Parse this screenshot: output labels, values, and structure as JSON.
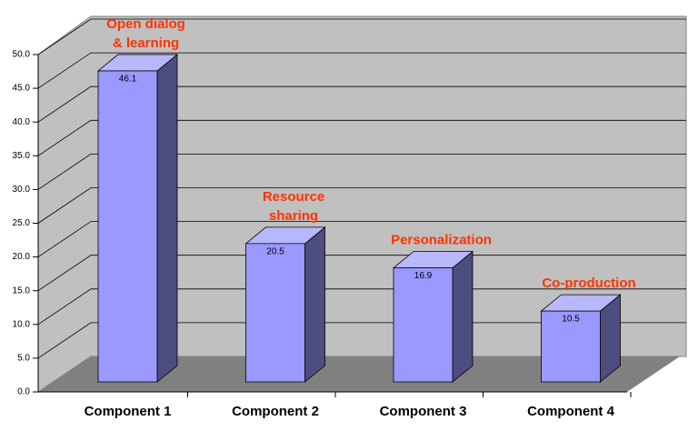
{
  "chart_data": {
    "type": "bar3d",
    "categories": [
      "Component 1",
      "Component 2",
      "Component 3",
      "Component 4"
    ],
    "values": [
      46.1,
      20.5,
      16.9,
      10.5
    ],
    "annotations": [
      [
        "Open dialog",
        "& learning"
      ],
      [
        "Resource",
        "sharing"
      ],
      [
        "Personalization"
      ],
      [
        "Co-production"
      ]
    ],
    "color": "#9999ff",
    "annotation_color": "#ff3300",
    "ylim": [
      0,
      50
    ],
    "yticks": [
      {
        "value": 0,
        "label": "0.0"
      },
      {
        "value": 5,
        "label": "5.0"
      },
      {
        "value": 10,
        "label": "10.0"
      },
      {
        "value": 15,
        "label": "15.0"
      },
      {
        "value": 20,
        "label": "20.0"
      },
      {
        "value": 25,
        "label": "25.0"
      },
      {
        "value": 30,
        "label": "30.0"
      },
      {
        "value": 35,
        "label": "35.0"
      },
      {
        "value": 40,
        "label": "40.0"
      },
      {
        "value": 45,
        "label": "45.0"
      },
      {
        "value": 50,
        "label": "50.0"
      }
    ],
    "grid": true
  }
}
